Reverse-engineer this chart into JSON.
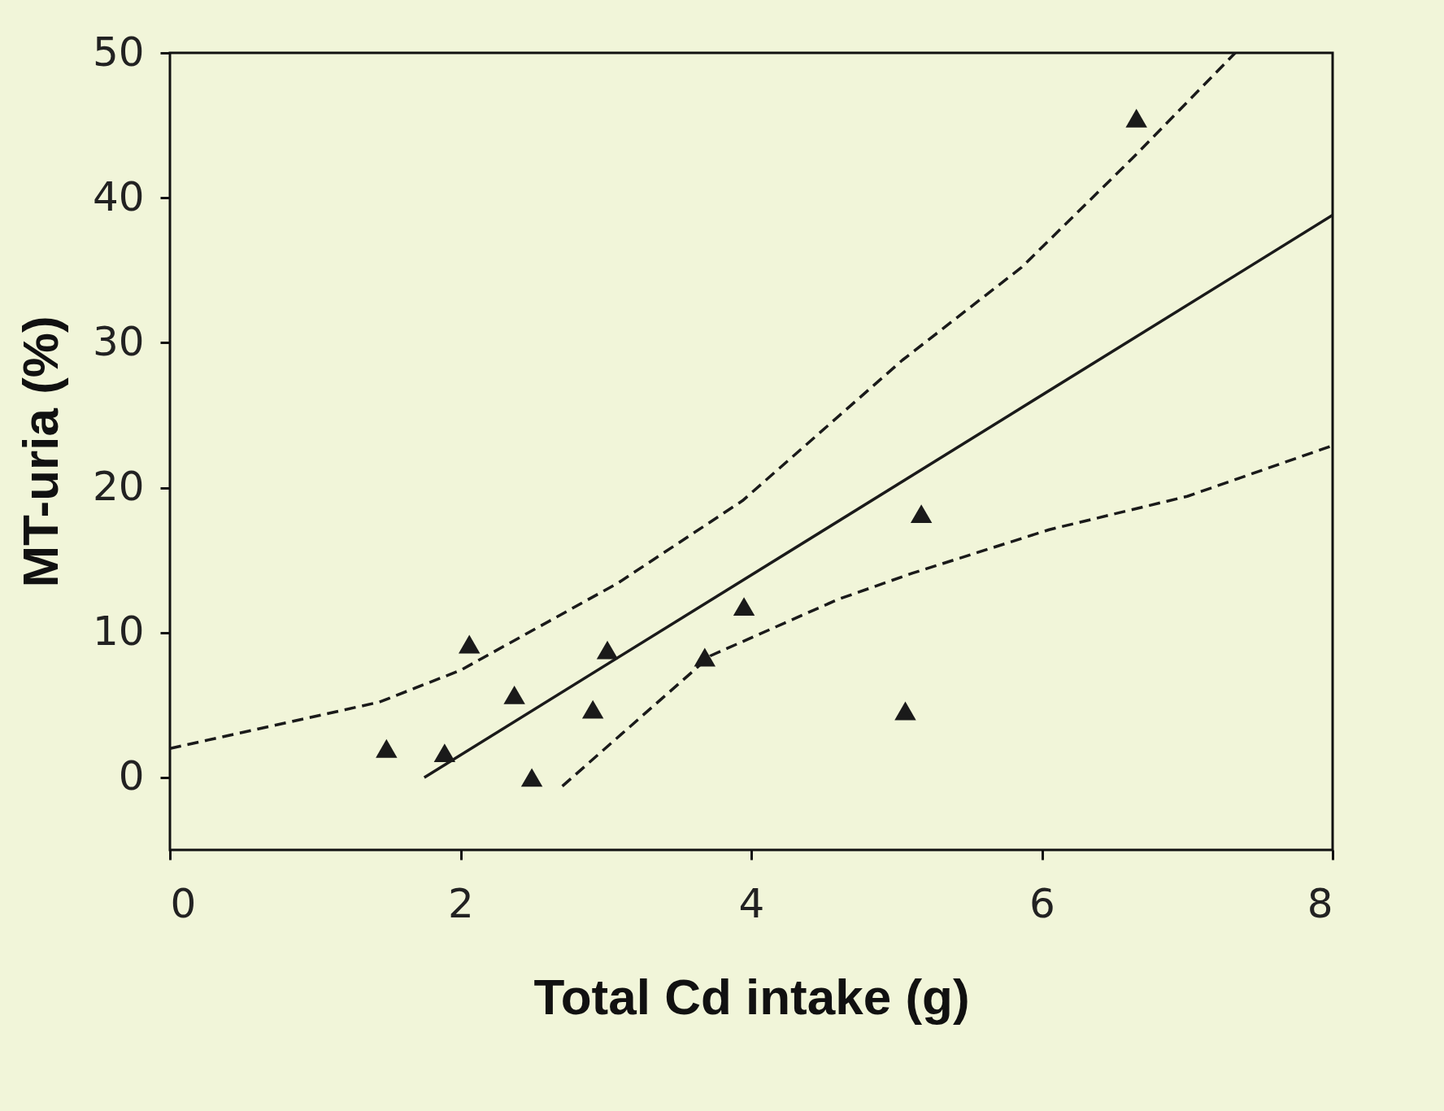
{
  "chart_data": {
    "type": "scatter",
    "xlabel": "Total Cd intake (g)",
    "ylabel": "MT-uria (%)",
    "xlim": [
      0,
      8
    ],
    "ylim": [
      -5,
      50
    ],
    "xticks": [
      0,
      2,
      4,
      6,
      8
    ],
    "yticks": [
      0,
      10,
      20,
      30,
      40,
      50
    ],
    "grid": false,
    "series": [
      {
        "type": "scatter",
        "marker": "triangle",
        "color": "#1a1a1a",
        "x": [
          1.49,
          1.89,
          2.06,
          2.37,
          2.49,
          2.91,
          3.01,
          3.68,
          3.95,
          5.06,
          5.17,
          6.65
        ],
        "values": [
          2.0,
          1.7,
          9.2,
          5.7,
          0,
          4.7,
          8.8,
          8.3,
          11.8,
          4.6,
          18.2,
          45.5
        ]
      },
      {
        "type": "line",
        "line_style": "solid",
        "color": "#1a1a1a",
        "x": [
          1.75,
          8
        ],
        "values": [
          0,
          38.8
        ]
      },
      {
        "type": "line",
        "line_style": "dashed",
        "color": "#1a1a1a",
        "x": [
          0,
          1.44,
          2.0,
          3.08,
          3.94,
          5.04,
          5.86,
          6.62,
          7.33
        ],
        "values": [
          2,
          5.2,
          7.4,
          13.4,
          19.1,
          28.8,
          35.2,
          42.7,
          50
        ]
      },
      {
        "type": "line",
        "line_style": "dashed",
        "color": "#1a1a1a",
        "x": [
          2.7,
          3.72,
          4.6,
          5.11,
          6.05,
          7.0,
          8
        ],
        "values": [
          -0.6,
          8.4,
          12.3,
          14.1,
          17.1,
          19.4,
          22.9
        ]
      }
    ]
  }
}
